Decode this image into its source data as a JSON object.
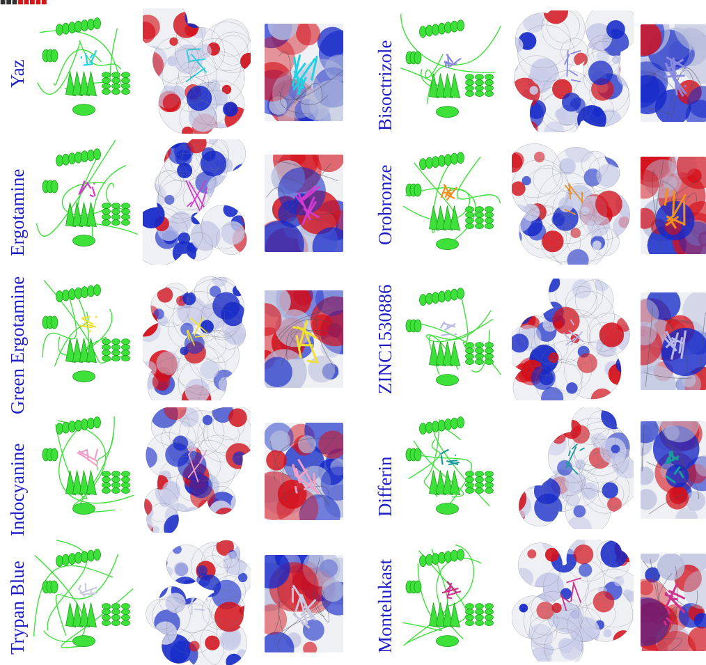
{
  "colors": {
    "label": "#1f1fc8",
    "protein_green": "#3ee03a",
    "surface_red": "#d4101a",
    "surface_blue": "#1428c8",
    "surface_white": "#eef0f4"
  },
  "left_column": {
    "rows": [
      {
        "label": "Yaz",
        "ligand_color": "#22d0e0"
      },
      {
        "label": "Ergotamine",
        "ligand_color": "#d23ad0"
      },
      {
        "label": "Green Ergotamine",
        "ligand_color": "#f0e030"
      },
      {
        "label": "Indocyanine",
        "ligand_color": "#f0a0c8"
      },
      {
        "label": "Trypan Blue",
        "ligand_color": "#c8c8e0"
      }
    ]
  },
  "right_column": {
    "rows": [
      {
        "label": "Bisoctrizole",
        "ligand_color": "#8a8ae0"
      },
      {
        "label": "Orobronze",
        "ligand_color": "#f09020"
      },
      {
        "label": "ZINC1530886",
        "ligand_color": "#b8b8e8"
      },
      {
        "label": "Differin",
        "ligand_color": "#1a9c9c"
      },
      {
        "label": "Montelukast",
        "ligand_color": "#d0308c"
      }
    ]
  }
}
